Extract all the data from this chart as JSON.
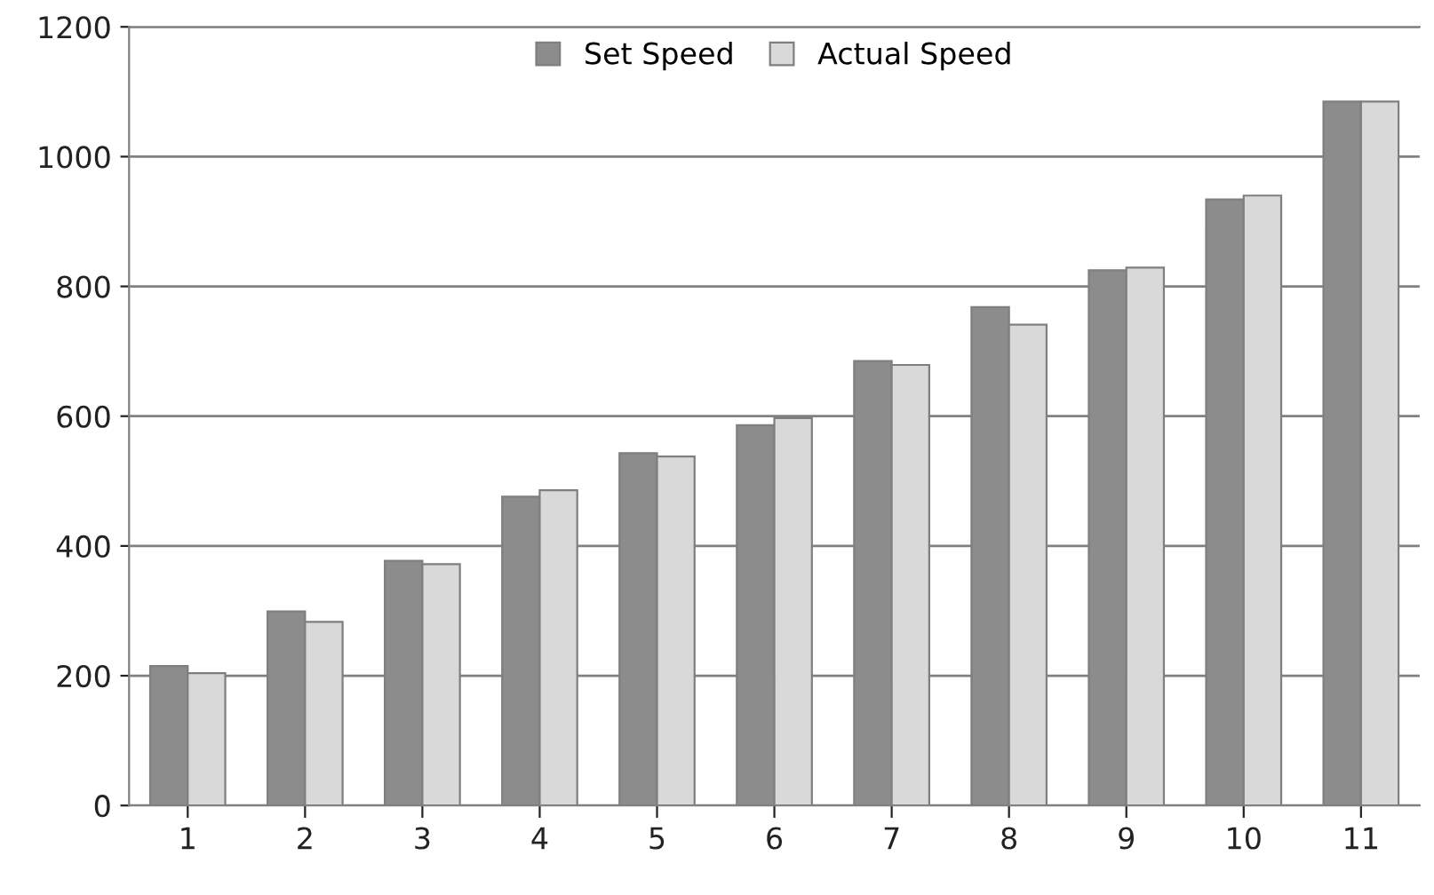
{
  "chart_data": {
    "type": "bar",
    "categories": [
      "1",
      "2",
      "3",
      "4",
      "5",
      "6",
      "7",
      "8",
      "9",
      "10",
      "11"
    ],
    "series": [
      {
        "name": "Set Speed",
        "color": "#8c8c8c",
        "values": [
          215,
          299,
          377,
          476,
          543,
          586,
          685,
          768,
          825,
          934,
          1085
        ]
      },
      {
        "name": "Actual Speed",
        "color": "#d9d9d9",
        "values": [
          204,
          283,
          372,
          486,
          538,
          597,
          679,
          741,
          829,
          940,
          1085
        ]
      }
    ],
    "ylim": [
      0,
      1200
    ],
    "yticks": [
      0,
      200,
      400,
      600,
      800,
      1000,
      1200
    ],
    "grid": "y",
    "legend": "top"
  }
}
